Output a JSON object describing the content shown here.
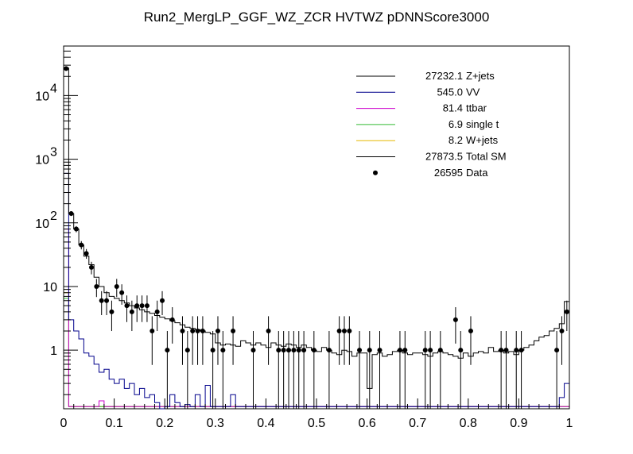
{
  "chart_data": {
    "type": "histogram",
    "title": "Run2_MergLP_GGF_WZ_ZCR HVTWZ  pDNNScore3000",
    "xlabel": "",
    "ylabel": "",
    "xlim": [
      0,
      1
    ],
    "ylim": [
      0.12,
      60000
    ],
    "yscale": "log",
    "grid": false,
    "legend_position": "top-right",
    "x_ticks": [
      {
        "value": 0,
        "label": "0"
      },
      {
        "value": 0.1,
        "label": "0.1"
      },
      {
        "value": 0.2,
        "label": "0.2"
      },
      {
        "value": 0.3,
        "label": "0.3"
      },
      {
        "value": 0.4,
        "label": "0.4"
      },
      {
        "value": 0.5,
        "label": "0.5"
      },
      {
        "value": 0.6,
        "label": "0.6"
      },
      {
        "value": 0.7,
        "label": "0.7"
      },
      {
        "value": 0.8,
        "label": "0.8"
      },
      {
        "value": 0.9,
        "label": "0.9"
      },
      {
        "value": 1,
        "label": "1"
      }
    ],
    "y_ticks": [
      {
        "value": 1,
        "base": "1",
        "exp": ""
      },
      {
        "value": 10,
        "base": "10",
        "exp": ""
      },
      {
        "value": 100,
        "base": "10",
        "exp": "2"
      },
      {
        "value": 1000,
        "base": "10",
        "exp": "3"
      },
      {
        "value": 10000,
        "base": "10",
        "exp": "4"
      }
    ],
    "legend": [
      {
        "yield": "27232.1",
        "name": "Z+jets",
        "color": "#000000",
        "marker": "line"
      },
      {
        "yield": "545.0",
        "name": "VV",
        "color": "#00008b",
        "marker": "line"
      },
      {
        "yield": "81.4",
        "name": "ttbar",
        "color": "#cc00cc",
        "marker": "line"
      },
      {
        "yield": "6.9",
        "name": "single t",
        "color": "#33bb33",
        "marker": "line"
      },
      {
        "yield": "8.2",
        "name": "W+jets",
        "color": "#e6b800",
        "marker": "line"
      },
      {
        "yield": "27873.5",
        "name": "Total SM",
        "color": "#000000",
        "marker": "line"
      },
      {
        "yield": "26595",
        "name": "Data",
        "color": "#000000",
        "marker": "dot"
      }
    ],
    "bin_edges": {
      "start": 0,
      "end": 1,
      "n_bins": 100
    },
    "series": [
      {
        "name": "Total SM",
        "color": "#000000",
        "values": [
          27000,
          140,
          80,
          45,
          30,
          22,
          14,
          10,
          8,
          7,
          6.5,
          6,
          5.5,
          5,
          4.6,
          4.3,
          4,
          3.8,
          3.5,
          3.3,
          3.1,
          2.9,
          2.7,
          2.5,
          2.3,
          2.2,
          2.1,
          2,
          1.9,
          1.8,
          1.3,
          1.2,
          1.25,
          1.2,
          1.15,
          1.4,
          1.3,
          1.2,
          1.3,
          1.2,
          1.1,
          1.3,
          1.2,
          1.15,
          1.25,
          1.2,
          1.1,
          1.2,
          1.1,
          1.0,
          0.95,
          1.1,
          1.0,
          0.9,
          0.85,
          1.0,
          0.95,
          0.8,
          0.9,
          0.9,
          0.25,
          0.85,
          0.9,
          0.8,
          0.85,
          0.95,
          1.0,
          0.9,
          0.85,
          0.9,
          0.9,
          0.85,
          0.8,
          0.9,
          0.95,
          0.9,
          0.85,
          0.8,
          0.75,
          0.9,
          0.8,
          0.9,
          0.95,
          0.9,
          1.1,
          0.95,
          1.0,
          0.9,
          0.95,
          0.85,
          1.0,
          1.1,
          1.2,
          1.4,
          1.6,
          1.7,
          2.0,
          2.2,
          2.6,
          5.8
        ]
      },
      {
        "name": "VV",
        "color": "#00008b",
        "values": [
          600,
          3.0,
          2.0,
          1.5,
          0.9,
          0.8,
          0.6,
          0.45,
          0.5,
          0.35,
          0.3,
          0.35,
          0.25,
          0.3,
          0.2,
          0.25,
          0.18,
          0.2,
          0.15,
          0.12,
          0.13,
          0.2,
          0.15,
          0.13,
          0.14,
          0.13,
          0.2,
          0.13,
          0.28,
          0.13,
          0.13,
          0.13,
          0.13,
          0.2,
          0.13,
          0.13,
          0.13,
          0.13,
          0.13,
          0.13,
          0.13,
          0.13,
          0.13,
          0.13,
          0.13,
          0.13,
          0.13,
          0.13,
          0.13,
          0.13,
          0.13,
          0.13,
          0.13,
          0.13,
          0.13,
          0.13,
          0.13,
          0.13,
          0.13,
          0.13,
          0.13,
          0.13,
          0.13,
          0.13,
          0.13,
          0.13,
          0.13,
          0.13,
          0.13,
          0.13,
          0.13,
          0.13,
          0.13,
          0.13,
          0.13,
          0.13,
          0.13,
          0.13,
          0.13,
          0.13,
          0.13,
          0.13,
          0.13,
          0.13,
          0.13,
          0.13,
          0.13,
          0.13,
          0.13,
          0.13,
          0.13,
          0.13,
          0.13,
          0.13,
          0.13,
          0.13,
          0.13,
          0.13,
          0.18,
          0.3
        ]
      },
      {
        "name": "ttbar",
        "color": "#cc00cc",
        "values": [
          80,
          0.13,
          0.13,
          0.13,
          0.13,
          0.13,
          0.13,
          0.16,
          0.13,
          0.13,
          0.13,
          0.13,
          0.13,
          0.13,
          0.13,
          0.13,
          0.13,
          0.13,
          0.13,
          0.13,
          0.13,
          0.13,
          0.13,
          0.13,
          0.13,
          0.13,
          0.13,
          0.13,
          0.13,
          0.13,
          0.13,
          0.13,
          0.13,
          0.13,
          0.13,
          0.13,
          0.13,
          0.13,
          0.13,
          0.13,
          0.13,
          0.13,
          0.13,
          0.13,
          0.13,
          0.13,
          0.13,
          0.13,
          0.13,
          0.13,
          0.13,
          0.13,
          0.13,
          0.13,
          0.13,
          0.13,
          0.13,
          0.13,
          0.13,
          0.13,
          0.13,
          0.13,
          0.13,
          0.13,
          0.13,
          0.13,
          0.13,
          0.13,
          0.13,
          0.13,
          0.13,
          0.13,
          0.13,
          0.13,
          0.13,
          0.13,
          0.13,
          0.13,
          0.13,
          0.13,
          0.13,
          0.13,
          0.13,
          0.13,
          0.13,
          0.13,
          0.13,
          0.13,
          0.13,
          0.13,
          0.13,
          0.13,
          0.13,
          0.13,
          0.13,
          0.13,
          0.13,
          0.13,
          0.13,
          0.13
        ]
      },
      {
        "name": "single t",
        "color": "#33bb33",
        "values": [
          6.5,
          0.13,
          0.13,
          0.13,
          0.13,
          0.13,
          0.13,
          0.13,
          0.13,
          0.13,
          0.13,
          0.13,
          0.13,
          0.13,
          0.13,
          0.13,
          0.13,
          0.13,
          0.13,
          0.13,
          0.13,
          0.13,
          0.13,
          0.13,
          0.13,
          0.13,
          0.13,
          0.13,
          0.13,
          0.13,
          0.13,
          0.13,
          0.13,
          0.13,
          0.13,
          0.13,
          0.13,
          0.13,
          0.13,
          0.13,
          0.13,
          0.13,
          0.13,
          0.13,
          0.13,
          0.13,
          0.13,
          0.13,
          0.13,
          0.13,
          0.13,
          0.13,
          0.13,
          0.13,
          0.13,
          0.13,
          0.13,
          0.13,
          0.13,
          0.13,
          0.13,
          0.13,
          0.13,
          0.13,
          0.13,
          0.13,
          0.13,
          0.13,
          0.13,
          0.13,
          0.13,
          0.13,
          0.13,
          0.13,
          0.13,
          0.13,
          0.13,
          0.13,
          0.13,
          0.13,
          0.13,
          0.13,
          0.13,
          0.13,
          0.13,
          0.13,
          0.13,
          0.13,
          0.13,
          0.13,
          0.13,
          0.13,
          0.13,
          0.13,
          0.13,
          0.13,
          0.13,
          0.13,
          0.13,
          0.13
        ]
      },
      {
        "name": "W+jets",
        "color": "#e6b800",
        "values": [
          8,
          0.13,
          0.13,
          0.13,
          0.13,
          0.13,
          0.13,
          0.13,
          0.13,
          0.13,
          0.13,
          0.13,
          0.13,
          0.13,
          0.13,
          0.13,
          0.13,
          0.13,
          0.13,
          0.13,
          0.13,
          0.13,
          0.13,
          0.13,
          0.13,
          0.13,
          0.13,
          0.13,
          0.13,
          0.13,
          0.13,
          0.13,
          0.13,
          0.13,
          0.13,
          0.13,
          0.13,
          0.13,
          0.13,
          0.13,
          0.13,
          0.13,
          0.13,
          0.13,
          0.13,
          0.13,
          0.13,
          0.13,
          0.13,
          0.13,
          0.13,
          0.13,
          0.13,
          0.13,
          0.13,
          0.13,
          0.13,
          0.13,
          0.13,
          0.13,
          0.13,
          0.13,
          0.13,
          0.13,
          0.13,
          0.13,
          0.13,
          0.13,
          0.13,
          0.13,
          0.13,
          0.13,
          0.13,
          0.13,
          0.13,
          0.13,
          0.13,
          0.13,
          0.13,
          0.13,
          0.13,
          0.13,
          0.13,
          0.13,
          0.13,
          0.13,
          0.13,
          0.13,
          0.13,
          0.13,
          0.13,
          0.13,
          0.13,
          0.13,
          0.13,
          0.13,
          0.13,
          0.13,
          0.13,
          0.13
        ]
      }
    ],
    "data_points": [
      {
        "x": 0.005,
        "y": 26595
      },
      {
        "x": 0.015,
        "y": 140
      },
      {
        "x": 0.025,
        "y": 80
      },
      {
        "x": 0.035,
        "y": 45
      },
      {
        "x": 0.045,
        "y": 33
      },
      {
        "x": 0.055,
        "y": 20
      },
      {
        "x": 0.065,
        "y": 10
      },
      {
        "x": 0.075,
        "y": 6
      },
      {
        "x": 0.085,
        "y": 6
      },
      {
        "x": 0.095,
        "y": 4
      },
      {
        "x": 0.105,
        "y": 10
      },
      {
        "x": 0.115,
        "y": 8
      },
      {
        "x": 0.125,
        "y": 5
      },
      {
        "x": 0.135,
        "y": 4
      },
      {
        "x": 0.145,
        "y": 5
      },
      {
        "x": 0.155,
        "y": 5
      },
      {
        "x": 0.165,
        "y": 5
      },
      {
        "x": 0.175,
        "y": 2
      },
      {
        "x": 0.185,
        "y": 4
      },
      {
        "x": 0.195,
        "y": 6
      },
      {
        "x": 0.205,
        "y": 1
      },
      {
        "x": 0.215,
        "y": 3
      },
      {
        "x": 0.235,
        "y": 2
      },
      {
        "x": 0.245,
        "y": 1
      },
      {
        "x": 0.255,
        "y": 2
      },
      {
        "x": 0.265,
        "y": 2
      },
      {
        "x": 0.275,
        "y": 2
      },
      {
        "x": 0.295,
        "y": 1
      },
      {
        "x": 0.305,
        "y": 2
      },
      {
        "x": 0.315,
        "y": 1
      },
      {
        "x": 0.335,
        "y": 2
      },
      {
        "x": 0.375,
        "y": 1
      },
      {
        "x": 0.405,
        "y": 2
      },
      {
        "x": 0.425,
        "y": 1
      },
      {
        "x": 0.435,
        "y": 1
      },
      {
        "x": 0.445,
        "y": 1
      },
      {
        "x": 0.455,
        "y": 1
      },
      {
        "x": 0.465,
        "y": 1
      },
      {
        "x": 0.475,
        "y": 1
      },
      {
        "x": 0.495,
        "y": 1
      },
      {
        "x": 0.525,
        "y": 1
      },
      {
        "x": 0.545,
        "y": 2
      },
      {
        "x": 0.555,
        "y": 2
      },
      {
        "x": 0.565,
        "y": 2
      },
      {
        "x": 0.585,
        "y": 1
      },
      {
        "x": 0.605,
        "y": 1
      },
      {
        "x": 0.625,
        "y": 1
      },
      {
        "x": 0.665,
        "y": 1
      },
      {
        "x": 0.675,
        "y": 1
      },
      {
        "x": 0.715,
        "y": 1
      },
      {
        "x": 0.725,
        "y": 1
      },
      {
        "x": 0.745,
        "y": 1
      },
      {
        "x": 0.775,
        "y": 3
      },
      {
        "x": 0.785,
        "y": 1
      },
      {
        "x": 0.805,
        "y": 2
      },
      {
        "x": 0.865,
        "y": 1
      },
      {
        "x": 0.875,
        "y": 1
      },
      {
        "x": 0.895,
        "y": 1
      },
      {
        "x": 0.905,
        "y": 1
      },
      {
        "x": 0.975,
        "y": 1
      },
      {
        "x": 0.985,
        "y": 2
      },
      {
        "x": 0.995,
        "y": 4
      }
    ]
  }
}
